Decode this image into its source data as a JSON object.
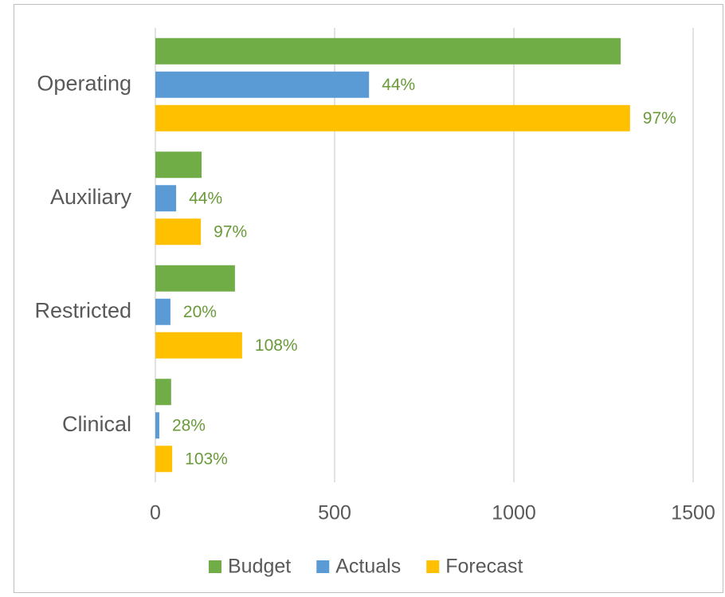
{
  "chart_data": {
    "type": "bar",
    "orientation": "horizontal",
    "categories": [
      "Operating",
      "Auxiliary",
      "Restricted",
      "Clinical"
    ],
    "series": [
      {
        "name": "Budget",
        "color": "#70ad47",
        "values": [
          1298,
          129,
          222,
          44
        ]
      },
      {
        "name": "Actuals",
        "color": "#5b9bd5",
        "values": [
          596,
          58,
          42,
          11
        ],
        "percent_labels": [
          "44%",
          "44%",
          "20%",
          "28%"
        ]
      },
      {
        "name": "Forecast",
        "color": "#ffc000",
        "values": [
          1324,
          127,
          242,
          47
        ],
        "percent_labels": [
          "97%",
          "97%",
          "108%",
          "103%"
        ]
      }
    ],
    "xlim": [
      0,
      1500
    ],
    "xticks": [
      0,
      500,
      1000,
      1500
    ],
    "grid": true,
    "legend": "bottom"
  }
}
